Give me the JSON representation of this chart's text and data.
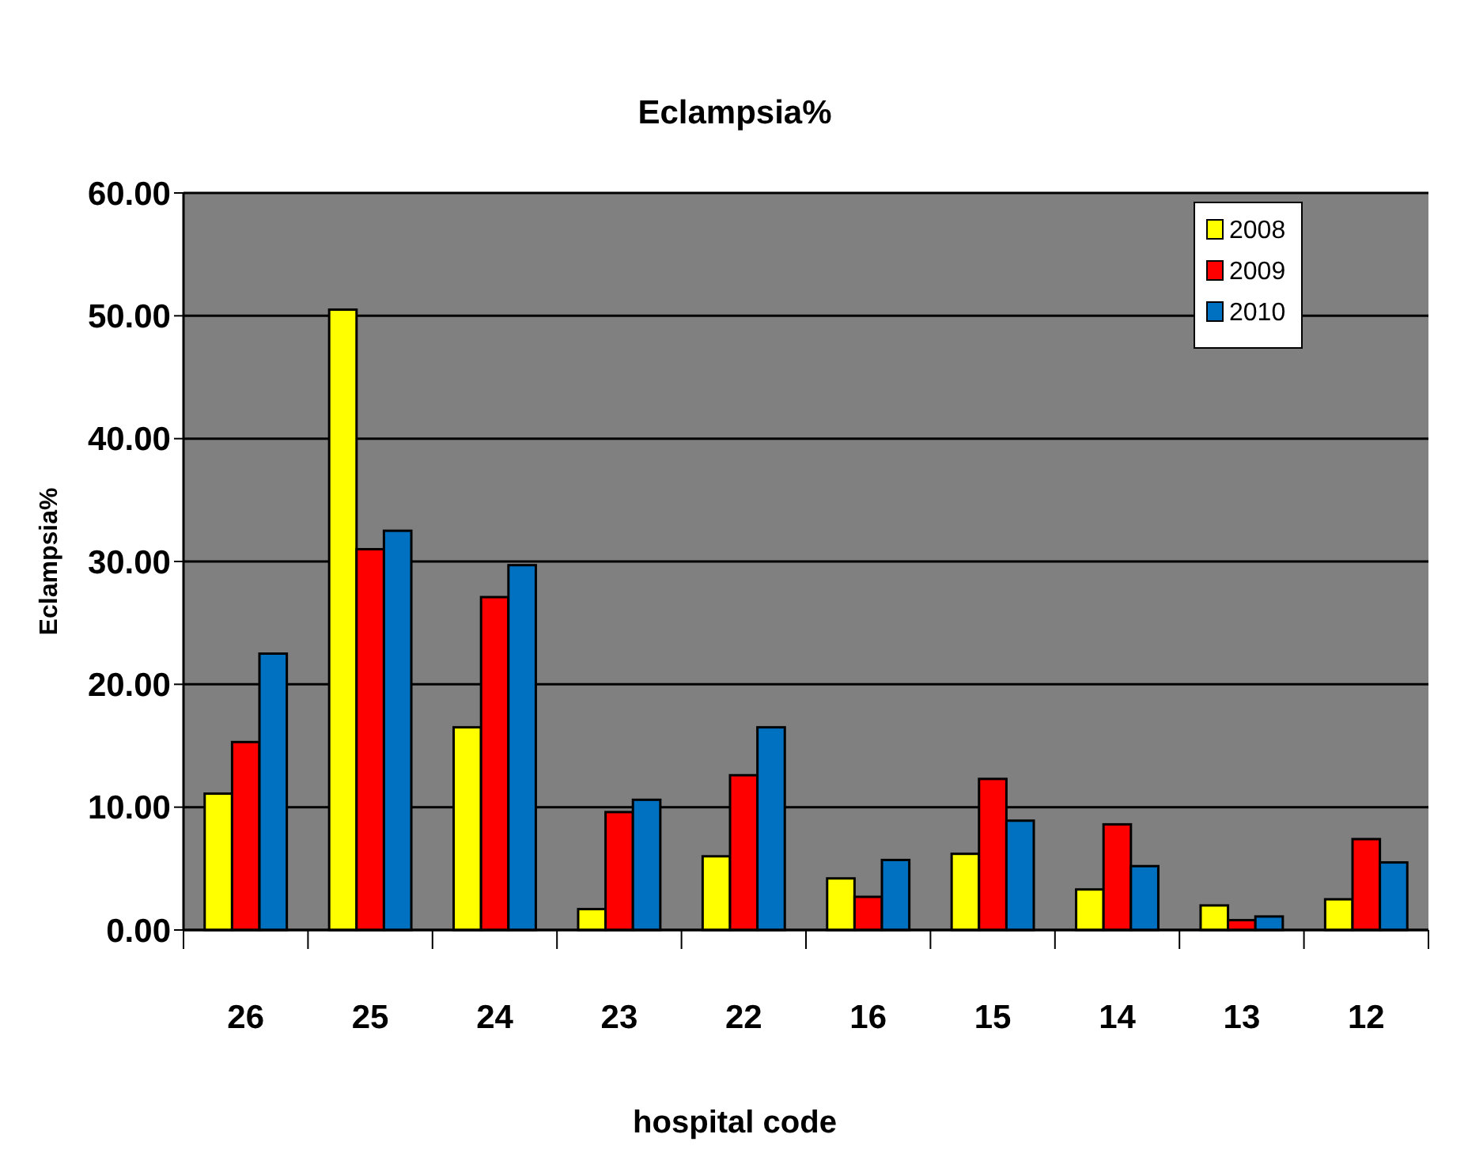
{
  "chart_data": {
    "type": "bar",
    "title": "Eclampsia%",
    "xlabel": "hospital code",
    "ylabel": "Eclampsia%",
    "categories": [
      "26",
      "25",
      "24",
      "23",
      "22",
      "16",
      "15",
      "14",
      "13",
      "12"
    ],
    "series": [
      {
        "name": "2008",
        "color": "#ffff00",
        "values": [
          11.1,
          50.5,
          16.5,
          1.7,
          6.0,
          4.2,
          6.2,
          3.3,
          2.0,
          2.5
        ]
      },
      {
        "name": "2009",
        "color": "#ff0000",
        "values": [
          15.3,
          31.0,
          27.1,
          9.6,
          12.6,
          2.7,
          12.3,
          8.6,
          0.8,
          7.4
        ]
      },
      {
        "name": "2010",
        "color": "#0070c0",
        "values": [
          22.5,
          32.5,
          29.7,
          10.6,
          16.5,
          5.7,
          8.9,
          5.2,
          1.1,
          5.5
        ]
      }
    ],
    "ylim": [
      0,
      60
    ],
    "yticks": [
      {
        "value": 0,
        "label": "0.00"
      },
      {
        "value": 10,
        "label": "10.00"
      },
      {
        "value": 20,
        "label": "20.00"
      },
      {
        "value": 30,
        "label": "30.00"
      },
      {
        "value": 40,
        "label": "40.00"
      },
      {
        "value": 50,
        "label": "50.00"
      },
      {
        "value": 60,
        "label": "60.00"
      }
    ],
    "grid": "y",
    "legend": "top right"
  }
}
